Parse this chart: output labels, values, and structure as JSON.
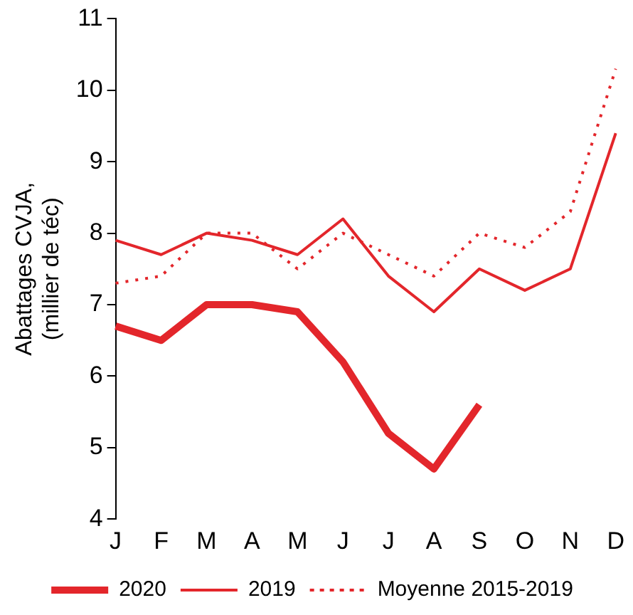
{
  "chart_data": {
    "type": "line",
    "ylabel": "Abattages CVJA,\n(millier de téc)",
    "categories": [
      "J",
      "F",
      "M",
      "A",
      "M",
      "J",
      "J",
      "A",
      "S",
      "O",
      "N",
      "D"
    ],
    "ylim": [
      4,
      11
    ],
    "yticks": [
      4,
      5,
      6,
      7,
      8,
      9,
      10,
      11
    ],
    "grid": false,
    "legend": "bottom",
    "marker": "none",
    "series": [
      {
        "name": "2020",
        "color": "#e3262b",
        "line_style": "solid",
        "values": [
          6.7,
          6.5,
          7.0,
          7.0,
          6.9,
          6.2,
          5.2,
          4.7,
          5.6,
          null,
          null,
          null
        ]
      },
      {
        "name": "2019",
        "color": "#e3262b",
        "line_style": "solid",
        "values": [
          7.9,
          7.7,
          8.0,
          7.9,
          7.7,
          8.2,
          7.4,
          6.9,
          7.5,
          7.2,
          7.5,
          9.4
        ]
      },
      {
        "name": "Moyenne 2015-2019",
        "color": "#e3262b",
        "line_style": "dotted",
        "values": [
          7.3,
          7.4,
          8.0,
          8.0,
          7.5,
          8.0,
          7.7,
          7.4,
          8.0,
          7.8,
          8.3,
          10.3
        ]
      }
    ]
  }
}
